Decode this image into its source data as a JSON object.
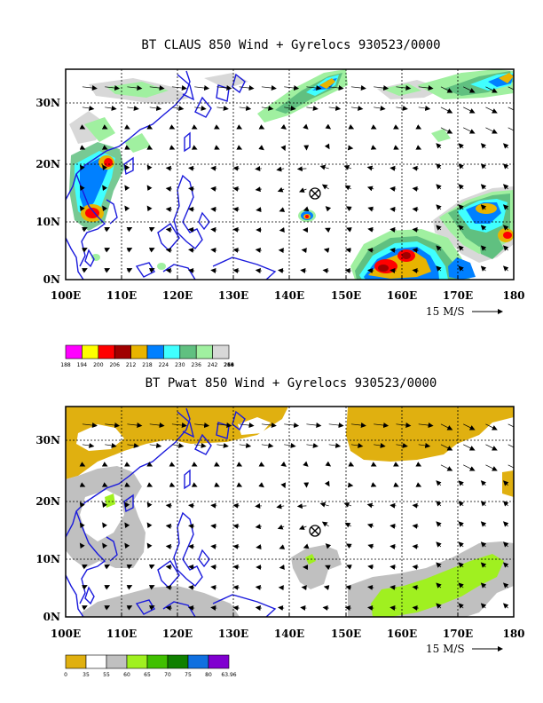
{
  "panels": [
    {
      "id": "claus",
      "title": "BT CLAUS 850 Wind + Gyrelocs 930523/0000",
      "x_labels": [
        "100E",
        "110E",
        "120E",
        "130E",
        "140E",
        "150E",
        "160E",
        "170E",
        "180"
      ],
      "y_labels": [
        "0N",
        "10N",
        "20N",
        "30N"
      ],
      "vector_label": "15 M/S",
      "colorbar_labels": [
        "188",
        "194",
        "200",
        "206",
        "212",
        "218",
        "224",
        "230",
        "236",
        "242",
        "248",
        "254",
        "260",
        "266"
      ],
      "colorbar_colors": [
        "#ff00ff",
        "#ffff00",
        "#ff0000",
        "#a00000",
        "#e8b400",
        "#0080ff",
        "#40ffff",
        "#60c080",
        "#a0f0a0",
        "#d8d8d8"
      ]
    },
    {
      "id": "pwat",
      "title": "BT Pwat 850 Wind + Gyrelocs 930523/0000",
      "x_labels": [
        "100E",
        "110E",
        "120E",
        "130E",
        "140E",
        "150E",
        "160E",
        "170E",
        "180"
      ],
      "y_labels": [
        "0N",
        "10N",
        "20N",
        "30N"
      ],
      "vector_label": "15 M/S",
      "colorbar_labels": [
        "0",
        "35",
        "55",
        "60",
        "65",
        "70",
        "75",
        "80",
        "63.96"
      ],
      "colorbar_colors": [
        "#e0b010",
        "#ffffff",
        "#c0c0c0",
        "#a0f020",
        "#40c000",
        "#108000",
        "#1070e0",
        "#8000d0"
      ]
    }
  ],
  "gyre_location": {
    "lon_deg_e": 144.5,
    "lat_deg_n": 15
  }
}
